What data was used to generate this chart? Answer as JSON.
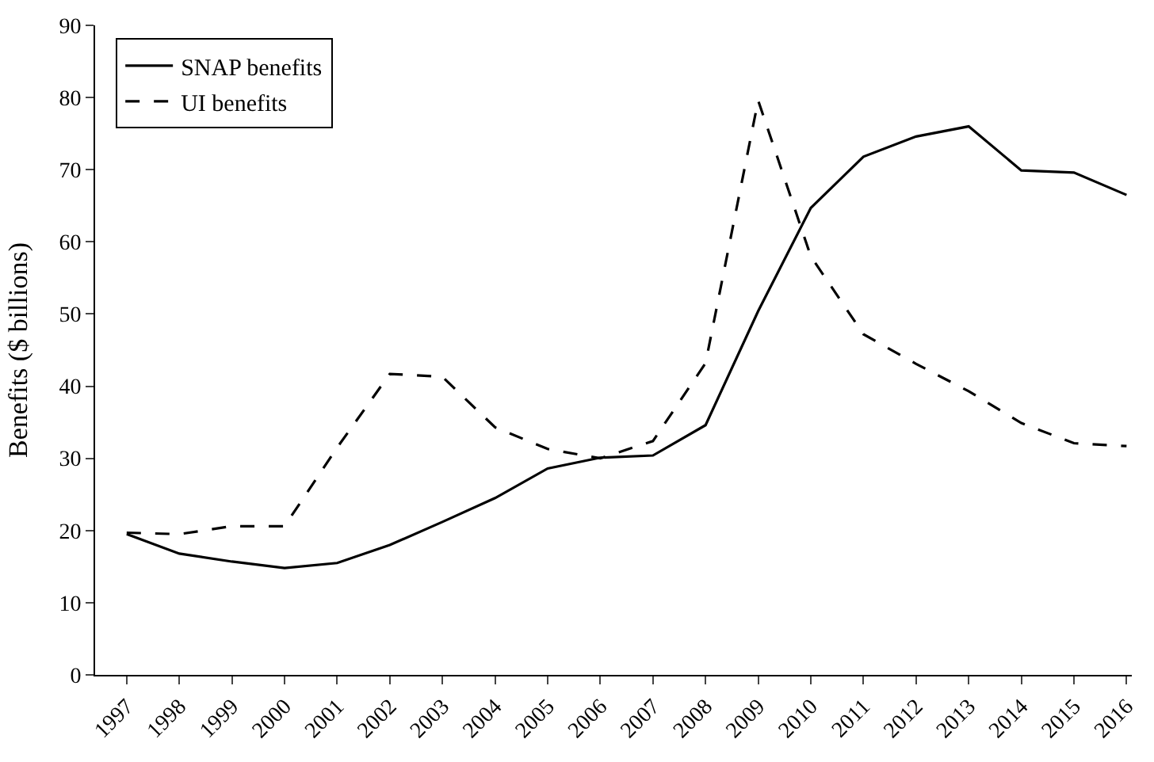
{
  "chart_data": {
    "type": "line",
    "ylabel": "Benefits ($ billions)",
    "categories": [
      "1997",
      "1998",
      "1999",
      "2000",
      "2001",
      "2002",
      "2003",
      "2004",
      "2005",
      "2006",
      "2007",
      "2008",
      "2009",
      "2010",
      "2011",
      "2012",
      "2013",
      "2014",
      "2015",
      "2016"
    ],
    "series": [
      {
        "name": "SNAP benefits",
        "color": "#000000",
        "line_style": "solid",
        "values": [
          19.5,
          16.8,
          15.7,
          14.8,
          15.5,
          18.0,
          21.2,
          24.5,
          28.6,
          30.1,
          30.4,
          34.6,
          50.4,
          64.7,
          71.8,
          74.6,
          76.0,
          69.9,
          69.6,
          66.5
        ]
      },
      {
        "name": "UI benefits",
        "color": "#000000",
        "line_style": "dashed",
        "values": [
          19.7,
          19.5,
          20.6,
          20.6,
          31.5,
          41.7,
          41.3,
          34.3,
          31.3,
          30.0,
          32.4,
          43.2,
          79.6,
          58.0,
          47.2,
          43.1,
          39.3,
          34.9,
          32.1,
          31.7
        ]
      }
    ],
    "ylim": [
      0,
      90
    ],
    "yticks": [
      0,
      10,
      20,
      30,
      40,
      50,
      60,
      70,
      80,
      90
    ],
    "legend": "top left",
    "marker": "none"
  }
}
